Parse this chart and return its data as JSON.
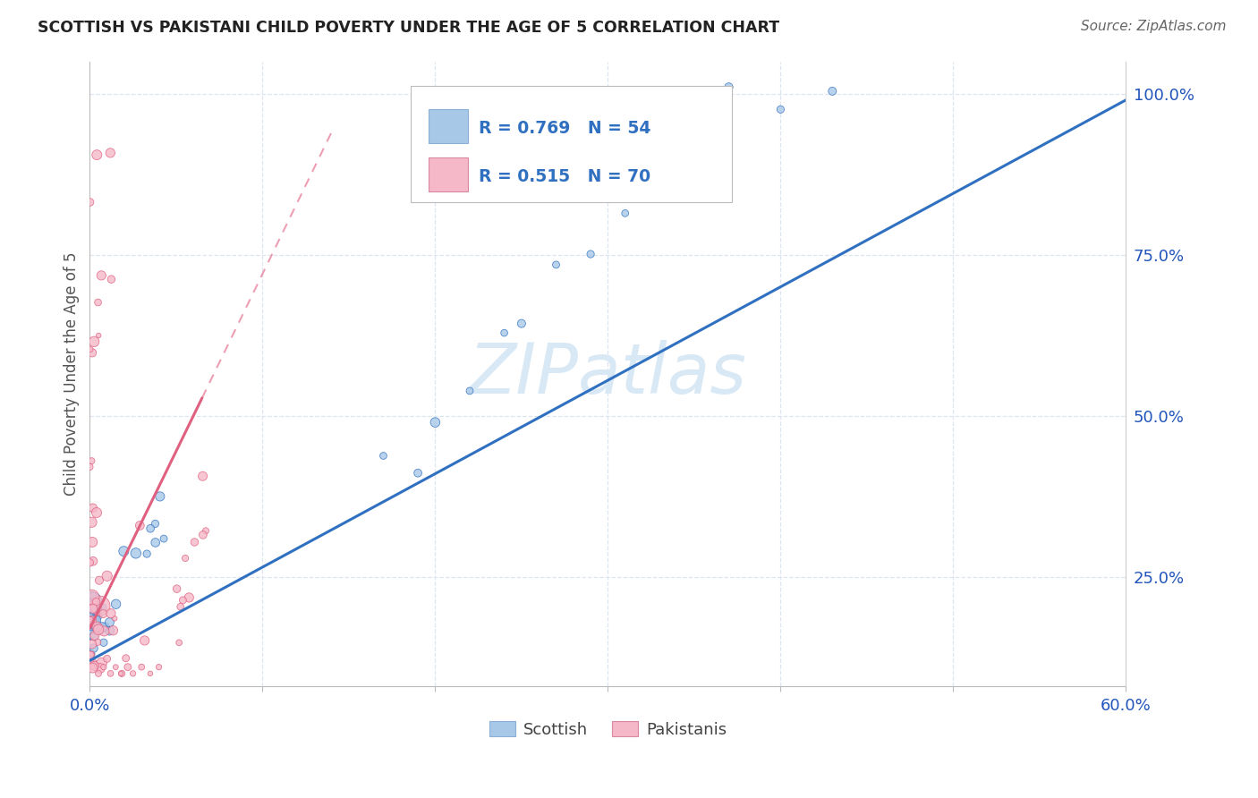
{
  "title": "SCOTTISH VS PAKISTANI CHILD POVERTY UNDER THE AGE OF 5 CORRELATION CHART",
  "source": "Source: ZipAtlas.com",
  "ylabel": "Child Poverty Under the Age of 5",
  "xlim": [
    0.0,
    0.6
  ],
  "ylim": [
    0.08,
    1.05
  ],
  "yticks_right": [
    0.25,
    0.5,
    0.75,
    1.0
  ],
  "yticklabels_right": [
    "25.0%",
    "50.0%",
    "75.0%",
    "100.0%"
  ],
  "scottish_color": "#a8c8e8",
  "pakistani_color": "#f5b8c8",
  "trend_scottish_color": "#3070c0",
  "trend_pakistani_color": "#e06080",
  "axis_label_color": "#2255bb",
  "watermark_color": "#d8e8f5",
  "scottish_R": 0.769,
  "scottish_N": 54,
  "pakistani_R": 0.515,
  "pakistani_N": 70,
  "background_color": "#ffffff",
  "grid_color": "#dde5f0",
  "title_color": "#222222",
  "source_color": "#666666",
  "ylabel_color": "#555555"
}
